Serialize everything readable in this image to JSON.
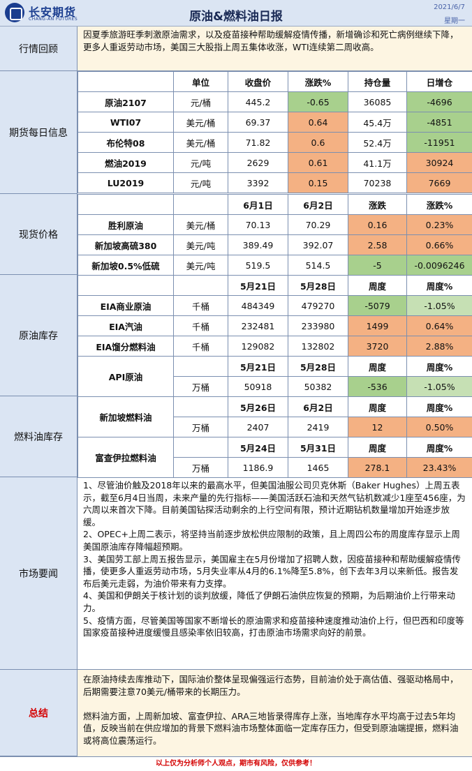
{
  "header": {
    "logo_cn": "长安期货",
    "logo_en": "CHANG-AN FUTURES",
    "title": "原油&燃料油日报",
    "date": "2021/6/7",
    "weekday": "星期一"
  },
  "review": {
    "label": "行情回顾",
    "text": "因夏季旅游旺季刺激原油需求，以及疫苗接种帮助缓解疫情传播，新增确诊和死亡病例继续下降，更多人重返劳动市场，美国三大股指上周五集体收涨，WTI连续第二周收高。"
  },
  "futures": {
    "label": "期货每日信息",
    "headers": [
      "",
      "单位",
      "收盘价",
      "涨跌%",
      "持仓量",
      "日增仓"
    ],
    "rows": [
      {
        "name": "原油2107",
        "unit": "元/桶",
        "close": "445.2",
        "chg": "-0.65",
        "oi": "36085",
        "doi": "-4696"
      },
      {
        "name": "WTI07",
        "unit": "美元/桶",
        "close": "69.37",
        "chg": "0.64",
        "oi": "45.4万",
        "doi": "-4851"
      },
      {
        "name": "布伦特08",
        "unit": "美元/桶",
        "close": "71.82",
        "chg": "0.6",
        "oi": "52.4万",
        "doi": "-11951"
      },
      {
        "name": "燃油2019",
        "unit": "元/吨",
        "close": "2629",
        "chg": "0.61",
        "oi": "41.1万",
        "doi": "30924"
      },
      {
        "name": "LU2019",
        "unit": "元/吨",
        "close": "3392",
        "chg": "0.15",
        "oi": "70238",
        "doi": "7669"
      }
    ]
  },
  "spot": {
    "label": "现货价格",
    "headers": [
      "",
      "",
      "6月1日",
      "6月2日",
      "涨跌",
      "涨跌%"
    ],
    "rows": [
      {
        "name": "胜利原油",
        "unit": "美元/桶",
        "d1": "70.13",
        "d2": "70.29",
        "chg": "0.16",
        "pct": "0.23%"
      },
      {
        "name": "新加坡高硫380",
        "unit": "美元/吨",
        "d1": "389.49",
        "d2": "392.07",
        "chg": "2.58",
        "pct": "0.66%"
      },
      {
        "name": "新加坡0.5%低硫",
        "unit": "美元/吨",
        "d1": "519.5",
        "d2": "514.5",
        "chg": "-5",
        "pct": "-0.0096246"
      }
    ]
  },
  "crude_stock": {
    "label": "原油库存",
    "headers": [
      "",
      "",
      "5月21日",
      "5月28日",
      "周度",
      "周度%"
    ],
    "rows": [
      {
        "name": "EIA商业原油",
        "unit": "千桶",
        "d1": "484349",
        "d2": "479270",
        "chg": "-5079",
        "pct": "-1.05%"
      },
      {
        "name": "EIA汽油",
        "unit": "千桶",
        "d1": "232481",
        "d2": "233980",
        "chg": "1499",
        "pct": "0.64%"
      },
      {
        "name": "EIA馏分燃料油",
        "unit": "千桶",
        "d1": "129082",
        "d2": "132802",
        "chg": "3720",
        "pct": "2.88%"
      }
    ],
    "api": {
      "name": "API原油",
      "headers": [
        "5月21日",
        "5月28日",
        "周度",
        "周度%"
      ],
      "unit": "万桶",
      "d1": "50918",
      "d2": "50382",
      "chg": "-536",
      "pct": "-1.05%"
    }
  },
  "fuel_stock": {
    "label": "燃料油库存",
    "sg": {
      "name": "新加坡燃料油",
      "headers": [
        "5月26日",
        "6月2日",
        "周度",
        "周度%"
      ],
      "unit": "万桶",
      "d1": "2407",
      "d2": "2419",
      "chg": "12",
      "pct": "0.50%"
    },
    "fj": {
      "name": "富查伊拉燃料油",
      "headers": [
        "5月24日",
        "5月31日",
        "周度",
        "周度%"
      ],
      "unit": "万桶",
      "d1": "1186.9",
      "d2": "1465",
      "chg": "278.1",
      "pct": "23.43%"
    }
  },
  "news": {
    "label": "市场要闻",
    "items": [
      "1、尽管油价触及2018年以来的最高水平，但美国油服公司贝克休斯（Baker Hughes）上周五表示，截至6月4日当周，未来产量的先行指标——美国活跃石油和天然气钻机数减少1座至456座，为六周以来首次下降。目前美国钻探活动剩余的上行空间有限，预计近期钻机数量增加开始逐步放缓。",
      "2、OPEC+上周二表示，将坚持当前逐步放松供应限制的政策，且上周四公布的周度库存显示上周美国原油库存降幅超预期。",
      "3、美国劳工部上周五报告显示，美国雇主在5月份增加了招聘人数，因疫苗接种和帮助缓解疫情传播，使更多人重返劳动市场，5月失业率从4月的6.1%降至5.8%，创下去年3月以来新低。报告发布后美元走弱，为油价带来有力支撑。",
      "4、美国和伊朗关于核计划的谈判放缓，降低了伊朗石油供应恢复的预期，为后期油价上行带来动力。",
      "5、疫情方面，尽管美国等国家不断增长的原油需求和疫苗接种速度推动油价上行，但巴西和印度等国家疫苗接种进度缓慢且感染率依旧较高，打击原油市场需求向好的前景。"
    ]
  },
  "summary": {
    "label": "总结",
    "p1": "在原油持续去库推动下，国际油价整体呈现偏强运行态势，目前油价处于高估值、强驱动格局中，后期需要注意70美元/桶带来的长期压力。",
    "p2": "燃料油方面，上周新加坡、富查伊拉、ARA三地皆录得库存上涨，当地库存水平均高于过去5年均值，反映当前在供应增加的背景下燃料油市场整体面临一定库存压力，但受到原油端提振，燃料油或将高位震荡运行。"
  },
  "footer": "以上仅为分析师个人观点，期市有风险，仅供参考！",
  "colors": {
    "up": "#f4b183",
    "down": "#a8d08d",
    "header_bg": "#dbe5f3",
    "text_bg": "#fdf5e2"
  }
}
